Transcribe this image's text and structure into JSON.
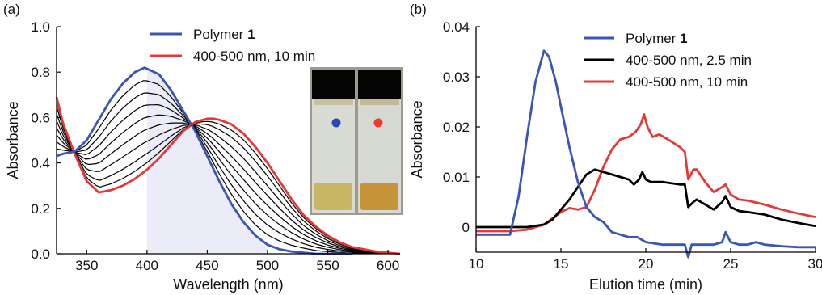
{
  "panel_a": {
    "label": "(a)",
    "legend": [
      {
        "text": "Polymer ",
        "bold": "1",
        "color": "#3a55b4"
      },
      {
        "text": "400-500 nm, 10 min",
        "bold": "",
        "color": "#e53935"
      }
    ]
  },
  "panel_b": {
    "label": "(b)",
    "legend": [
      {
        "text": "Polymer ",
        "bold": "1",
        "color": "#3a55b4"
      },
      {
        "text": "400-500 nm, 2.5 min",
        "bold": "",
        "color": "#000000"
      },
      {
        "text": "400-500 nm, 10 min",
        "bold": "",
        "color": "#e53935"
      }
    ]
  },
  "colors": {
    "blue": "#3a55b4",
    "red": "#e53935",
    "black": "#000000",
    "shade": "#ececf8"
  },
  "chart_data": [
    {
      "type": "line",
      "xlabel": "Wavelength (nm)",
      "ylabel": "Absorbance",
      "xlim": [
        325,
        610
      ],
      "ylim": [
        0,
        1.0
      ],
      "xticks": [
        350,
        400,
        450,
        500,
        550,
        600
      ],
      "xtick_labels": [
        "350",
        "400",
        "450",
        "500",
        "550",
        "600"
      ],
      "yticks": [
        0,
        0.2,
        0.4,
        0.6,
        0.8,
        1.0
      ],
      "ytick_labels": [
        "0.0",
        "0.2",
        "0.4",
        "0.6",
        "0.8",
        "1.0"
      ],
      "shaded_region": [
        400,
        500
      ],
      "inset": "photo of two vials (blue dot, red dot)",
      "series": [
        {
          "name": "Polymer 1",
          "color": "#3a55b4",
          "x": [
            325,
            330,
            340,
            350,
            360,
            370,
            380,
            390,
            398,
            410,
            420,
            430,
            440,
            450,
            460,
            470,
            480,
            490,
            500,
            510,
            520,
            530,
            540,
            550,
            560,
            570
          ],
          "y": [
            0.43,
            0.44,
            0.45,
            0.5,
            0.59,
            0.68,
            0.75,
            0.8,
            0.82,
            0.79,
            0.72,
            0.63,
            0.54,
            0.43,
            0.32,
            0.22,
            0.14,
            0.08,
            0.04,
            0.02,
            0.01,
            0.005,
            0.0,
            0.0,
            0.0,
            0.0
          ]
        },
        {
          "name": "400-500 nm, 10 min",
          "color": "#e53935",
          "x": [
            325,
            330,
            340,
            350,
            360,
            370,
            380,
            390,
            400,
            410,
            420,
            430,
            440,
            450,
            455,
            460,
            470,
            480,
            490,
            500,
            510,
            520,
            530,
            540,
            550,
            560,
            570,
            580,
            590,
            600,
            610
          ],
          "y": [
            0.69,
            0.58,
            0.44,
            0.32,
            0.27,
            0.28,
            0.3,
            0.33,
            0.37,
            0.42,
            0.48,
            0.54,
            0.58,
            0.595,
            0.595,
            0.59,
            0.57,
            0.53,
            0.47,
            0.4,
            0.32,
            0.24,
            0.17,
            0.12,
            0.08,
            0.05,
            0.03,
            0.02,
            0.01,
            0.005,
            0.0
          ]
        }
      ]
    },
    {
      "type": "line",
      "xlabel": "Elution time (min)",
      "ylabel": "Absorbance",
      "xlim": [
        10,
        30
      ],
      "ylim": [
        -0.005,
        0.04
      ],
      "xticks": [
        10,
        15,
        20,
        25,
        30
      ],
      "xtick_labels": [
        "10",
        "15",
        "20",
        "25",
        "30"
      ],
      "yticks": [
        0,
        0.01,
        0.02,
        0.03,
        0.04
      ],
      "ytick_labels": [
        "0",
        "0.01",
        "0.02",
        "0.03",
        "0.04"
      ],
      "series": [
        {
          "name": "Polymer 1",
          "color": "#3a55b4",
          "x": [
            10,
            11,
            12,
            12.5,
            13,
            13.5,
            14,
            14.3,
            14.7,
            15,
            15.5,
            16,
            16.5,
            17,
            17.5,
            18,
            18.5,
            19,
            19.5,
            20,
            21,
            22,
            22.3,
            22.5,
            22.7,
            23,
            24,
            24.5,
            24.7,
            25,
            25.5,
            26,
            26.5,
            27,
            28,
            29,
            30
          ],
          "y": [
            -0.0015,
            -0.0015,
            -0.0015,
            0.006,
            0.018,
            0.029,
            0.0352,
            0.034,
            0.029,
            0.024,
            0.016,
            0.009,
            0.004,
            0.002,
            0.001,
            -0.001,
            -0.0015,
            -0.002,
            -0.002,
            -0.003,
            -0.0035,
            -0.0035,
            -0.0035,
            -0.006,
            -0.0035,
            -0.0035,
            -0.0035,
            -0.003,
            -0.001,
            -0.003,
            -0.0035,
            -0.0035,
            -0.003,
            -0.0035,
            -0.0038,
            -0.004,
            -0.004
          ]
        },
        {
          "name": "400-500 nm, 2.5 min",
          "color": "#000000",
          "x": [
            10,
            12,
            13,
            14,
            14.5,
            15,
            15.5,
            16,
            16.5,
            17,
            17.5,
            18,
            18.5,
            19,
            19.3,
            19.6,
            19.8,
            20,
            20.3,
            21,
            22,
            22.3,
            22.5,
            22.8,
            23,
            23.5,
            24,
            24.5,
            24.7,
            25,
            25.5,
            26,
            27,
            28,
            29,
            30
          ],
          "y": [
            0,
            0,
            0,
            0.0005,
            0.0015,
            0.0035,
            0.0055,
            0.008,
            0.0105,
            0.0115,
            0.011,
            0.0105,
            0.01,
            0.0095,
            0.0085,
            0.0095,
            0.011,
            0.0095,
            0.009,
            0.009,
            0.0085,
            0.0085,
            0.004,
            0.005,
            0.0055,
            0.0045,
            0.0035,
            0.005,
            0.0062,
            0.004,
            0.0032,
            0.003,
            0.0025,
            0.0015,
            0.0008,
            0.0002
          ]
        },
        {
          "name": "400-500 nm, 10 min",
          "color": "#e53935",
          "x": [
            10,
            12,
            13,
            14,
            15,
            15.5,
            16,
            16.5,
            17,
            17.5,
            18,
            18.5,
            19,
            19.4,
            19.7,
            19.9,
            20.1,
            20.4,
            20.8,
            21.3,
            22,
            22.3,
            22.5,
            22.8,
            23,
            23.5,
            24,
            24.5,
            24.7,
            25,
            25.5,
            26,
            27,
            28,
            29,
            30
          ],
          "y": [
            -0.0008,
            -0.0008,
            -0.0005,
            0.0005,
            0.003,
            0.0038,
            0.0035,
            0.004,
            0.0075,
            0.012,
            0.0155,
            0.0175,
            0.018,
            0.019,
            0.0205,
            0.0225,
            0.02,
            0.018,
            0.0185,
            0.0175,
            0.016,
            0.015,
            0.0095,
            0.0115,
            0.0115,
            0.009,
            0.007,
            0.008,
            0.0085,
            0.0065,
            0.0055,
            0.0053,
            0.0045,
            0.0035,
            0.0027,
            0.002
          ]
        }
      ]
    }
  ]
}
